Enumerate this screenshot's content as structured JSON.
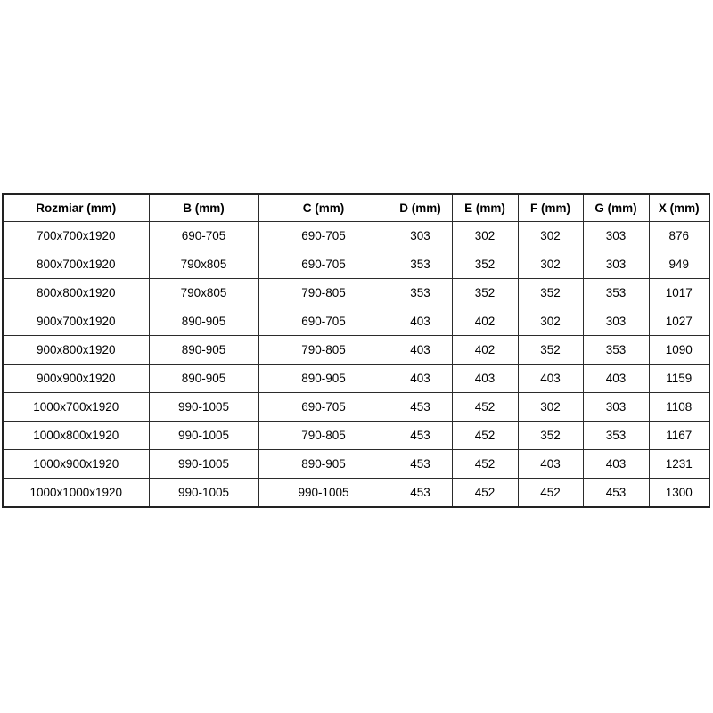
{
  "table": {
    "columns": [
      "Rozmiar (mm)",
      "B (mm)",
      "C (mm)",
      "D (mm)",
      "E (mm)",
      "F (mm)",
      "G (mm)",
      "X (mm)"
    ],
    "rows": [
      [
        "700x700x1920",
        "690-705",
        "690-705",
        "303",
        "302",
        "302",
        "303",
        "876"
      ],
      [
        "800x700x1920",
        "790x805",
        "690-705",
        "353",
        "352",
        "302",
        "303",
        "949"
      ],
      [
        "800x800x1920",
        "790x805",
        "790-805",
        "353",
        "352",
        "352",
        "353",
        "1017"
      ],
      [
        "900x700x1920",
        "890-905",
        "690-705",
        "403",
        "402",
        "302",
        "303",
        "1027"
      ],
      [
        "900x800x1920",
        "890-905",
        "790-805",
        "403",
        "402",
        "352",
        "353",
        "1090"
      ],
      [
        "900x900x1920",
        "890-905",
        "890-905",
        "403",
        "403",
        "403",
        "403",
        "1159"
      ],
      [
        "1000x700x1920",
        "990-1005",
        "690-705",
        "453",
        "452",
        "302",
        "303",
        "1108"
      ],
      [
        "1000x800x1920",
        "990-1005",
        "790-805",
        "453",
        "452",
        "352",
        "353",
        "1167"
      ],
      [
        "1000x900x1920",
        "990-1005",
        "890-905",
        "453",
        "452",
        "403",
        "403",
        "1231"
      ],
      [
        "1000x1000x1920",
        "990-1005",
        "990-1005",
        "453",
        "452",
        "452",
        "453",
        "1300"
      ]
    ],
    "colors": {
      "border": "#2b2b2b",
      "text": "#000000",
      "background": "#ffffff"
    }
  }
}
